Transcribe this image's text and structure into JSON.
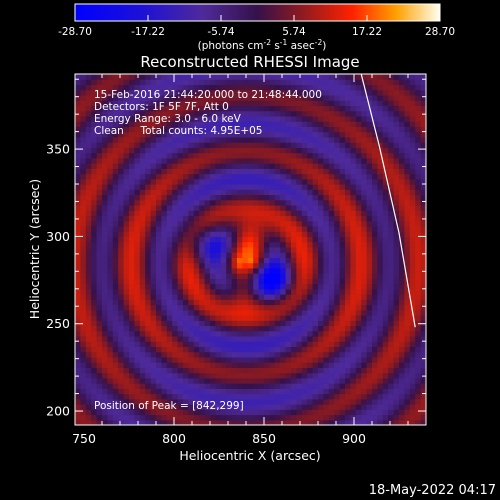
{
  "chart_data": {
    "type": "heatmap",
    "title": "Reconstructed RHESSI Image",
    "xlabel": "Heliocentric X (arcsec)",
    "ylabel": "Heliocentric Y (arcsec)",
    "xlim": [
      745,
      940
    ],
    "ylim": [
      192,
      393
    ],
    "x_ticks": [
      750,
      800,
      850,
      900
    ],
    "y_ticks": [
      200,
      250,
      300,
      350
    ],
    "colorbar": {
      "min": -28.7,
      "max": 28.7,
      "ticks": [
        "-28.70",
        "-17.22",
        "-5.74",
        "5.74",
        "17.22",
        "28.70"
      ],
      "unit_label": "(photons cm",
      "unit_exp1": "-2",
      "unit_mid": " s",
      "unit_exp2": "-1",
      "unit_tail": " asec",
      "unit_exp3": "-2",
      "unit_close": ")"
    },
    "info_lines": [
      "15-Feb-2016 21:44:20.000 to 21:48:44.000",
      "Detectors: 1F 5F 7F, Att 0",
      "Energy Range: 3.0 - 6.0 keV",
      "Clean     Total counts: 4.95E+05"
    ],
    "peak_label": "Position of Peak = [842,299]",
    "peak": {
      "x": 842,
      "y": 299,
      "value": 28.7
    },
    "limb_curve": [
      [
        934,
        248
      ],
      [
        925,
        302
      ],
      [
        914,
        352
      ],
      [
        904,
        393
      ]
    ],
    "sources": [
      {
        "x": 842,
        "y": 299,
        "amplitude": 28.7
      },
      {
        "x": 840,
        "y": 268,
        "amplitude": 22
      },
      {
        "x": 855,
        "y": 275,
        "amplitude": -25
      },
      {
        "x": 818,
        "y": 296,
        "amplitude": -16
      }
    ],
    "ring_pattern": {
      "center_x": 840,
      "center_y": 285,
      "wavelength_arcsec": 32
    }
  },
  "timestamp": "18-May-2022 04:17"
}
